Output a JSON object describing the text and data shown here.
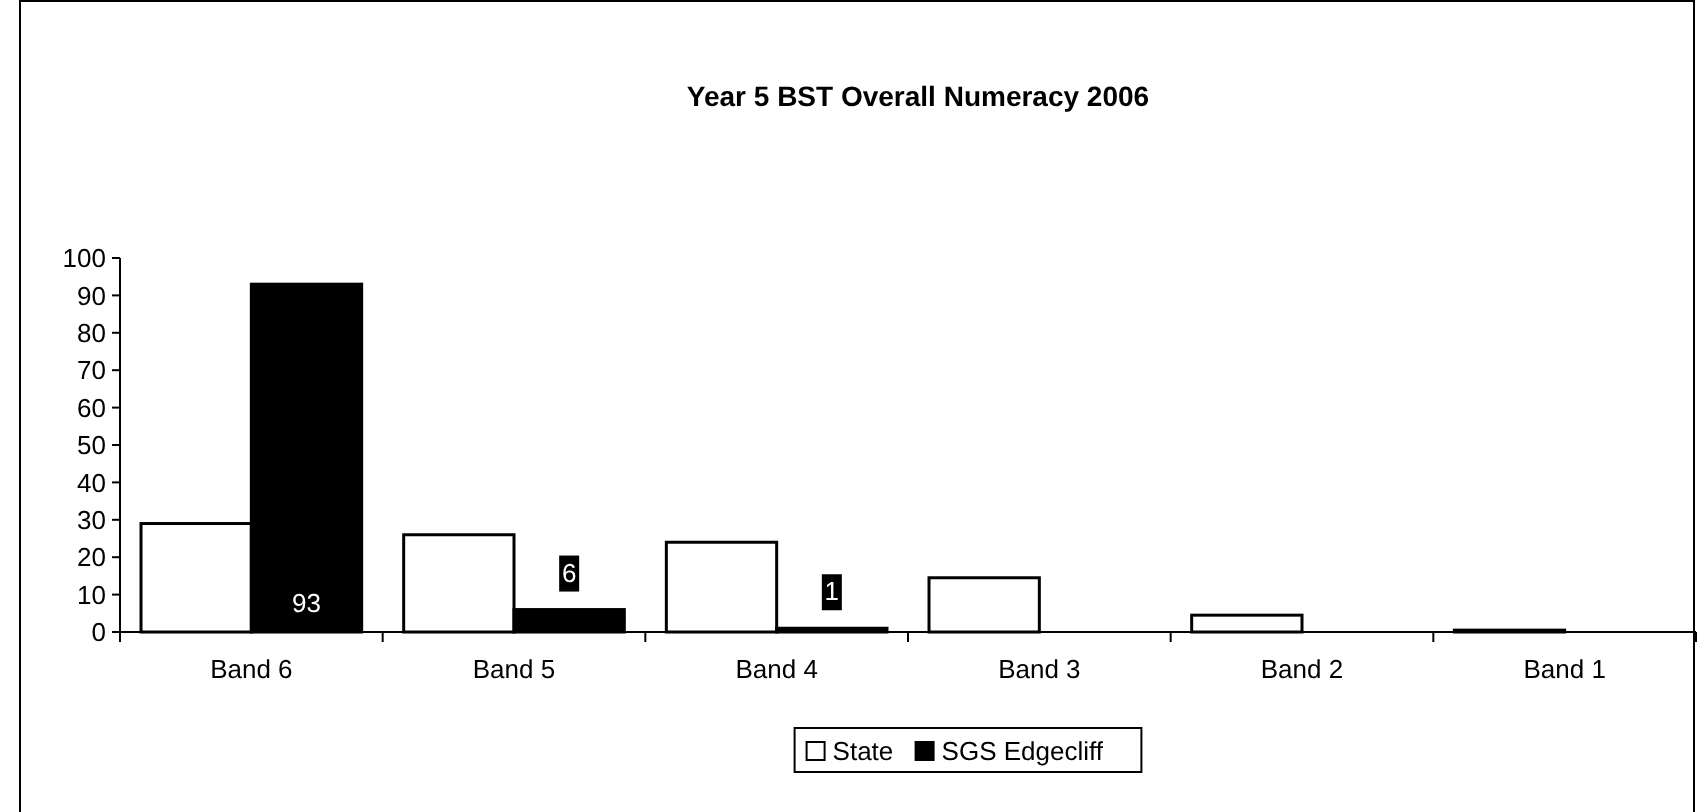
{
  "chart_data": {
    "type": "bar",
    "title": "Year 5 BST Overall Numeracy 2006",
    "categories": [
      "Band 6",
      "Band 5",
      "Band 4",
      "Band 3",
      "Band 2",
      "Band 1"
    ],
    "series": [
      {
        "name": "State",
        "color": "#ffffff",
        "values": [
          29,
          26,
          24,
          14.5,
          4.5,
          0.5
        ]
      },
      {
        "name": "SGS Edgecliff",
        "color": "#000000",
        "values": [
          93,
          6,
          1,
          0,
          0,
          0
        ],
        "value_labels": [
          "93",
          "6",
          "1",
          null,
          null,
          null
        ]
      }
    ],
    "ylim": [
      0,
      100
    ],
    "yticks": [
      0,
      10,
      20,
      30,
      40,
      50,
      60,
      70,
      80,
      90,
      100
    ],
    "grid": false,
    "legend": "bottom"
  }
}
